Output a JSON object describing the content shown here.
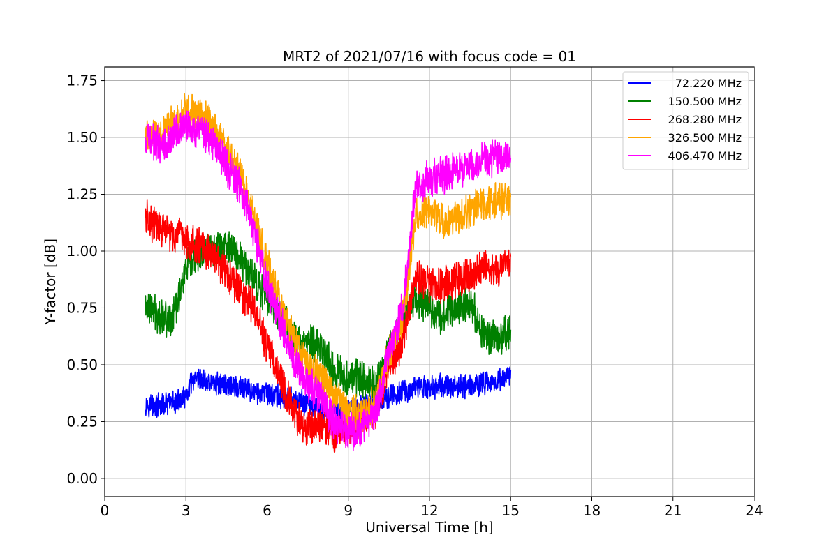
{
  "chart_data": {
    "type": "line",
    "title": "MRT2 of 2021/07/16 with focus code = 01",
    "xlabel": "Universal Time [h]",
    "ylabel": "Y-factor [dB]",
    "xlim": [
      0,
      24
    ],
    "ylim": [
      -0.08,
      1.81
    ],
    "xticks": [
      0,
      3,
      6,
      9,
      12,
      15,
      18,
      21,
      24
    ],
    "xtick_labels": [
      "0",
      "3",
      "6",
      "9",
      "12",
      "15",
      "18",
      "21",
      "24"
    ],
    "yticks": [
      0.0,
      0.25,
      0.5,
      0.75,
      1.0,
      1.25,
      1.5,
      1.75
    ],
    "ytick_labels": [
      "0.00",
      "0.25",
      "0.50",
      "0.75",
      "1.00",
      "1.25",
      "1.50",
      "1.75"
    ],
    "grid": true,
    "legend_position": "top-right",
    "series": [
      {
        "name": "72.220 MHz",
        "color": "#0000ff",
        "x": [
          1.5,
          2.0,
          2.5,
          3.0,
          3.2,
          3.5,
          4.0,
          4.5,
          5.0,
          5.5,
          6.0,
          6.5,
          7.0,
          7.5,
          8.0,
          8.5,
          9.0,
          9.5,
          10.0,
          10.5,
          11.0,
          11.5,
          12.0,
          12.5,
          13.0,
          13.5,
          14.0,
          14.5,
          15.0
        ],
        "y": [
          0.33,
          0.32,
          0.33,
          0.35,
          0.42,
          0.43,
          0.42,
          0.41,
          0.4,
          0.38,
          0.37,
          0.36,
          0.34,
          0.33,
          0.3,
          0.29,
          0.3,
          0.32,
          0.34,
          0.36,
          0.38,
          0.4,
          0.4,
          0.41,
          0.4,
          0.41,
          0.42,
          0.43,
          0.45
        ],
        "noise": 0.045
      },
      {
        "name": "150.500 MHz",
        "color": "#008000",
        "x": [
          1.5,
          2.0,
          2.5,
          3.0,
          3.5,
          4.0,
          4.5,
          5.0,
          5.5,
          6.0,
          6.5,
          7.0,
          7.5,
          8.0,
          8.5,
          9.0,
          9.5,
          10.0,
          10.5,
          11.0,
          11.5,
          12.0,
          12.5,
          13.0,
          13.5,
          14.0,
          14.5,
          15.0
        ],
        "y": [
          0.76,
          0.72,
          0.7,
          0.92,
          0.99,
          1.02,
          1.03,
          0.97,
          0.88,
          0.8,
          0.72,
          0.62,
          0.6,
          0.58,
          0.47,
          0.45,
          0.44,
          0.41,
          0.55,
          0.72,
          0.8,
          0.74,
          0.72,
          0.75,
          0.78,
          0.63,
          0.62,
          0.64
        ],
        "noise": 0.07
      },
      {
        "name": "268.280 MHz",
        "color": "#ff0000",
        "x": [
          1.5,
          2.0,
          2.5,
          3.0,
          3.5,
          4.0,
          4.5,
          5.0,
          5.5,
          6.0,
          6.5,
          7.0,
          7.5,
          8.0,
          8.5,
          9.0,
          9.5,
          10.0,
          10.5,
          11.0,
          11.5,
          12.0,
          12.5,
          13.0,
          13.5,
          14.0,
          14.5,
          15.0
        ],
        "y": [
          1.15,
          1.1,
          1.07,
          1.05,
          1.02,
          0.98,
          0.9,
          0.82,
          0.75,
          0.58,
          0.45,
          0.28,
          0.22,
          0.25,
          0.2,
          0.22,
          0.26,
          0.3,
          0.5,
          0.6,
          0.88,
          0.86,
          0.85,
          0.88,
          0.9,
          0.93,
          0.92,
          0.95
        ],
        "noise": 0.07
      },
      {
        "name": "326.500 MHz",
        "color": "#ffa500",
        "x": [
          1.5,
          2.0,
          2.5,
          3.0,
          3.5,
          4.0,
          4.5,
          5.0,
          5.5,
          6.0,
          6.5,
          7.0,
          7.5,
          8.0,
          8.5,
          9.0,
          9.5,
          10.0,
          10.5,
          11.0,
          11.5,
          12.0,
          12.5,
          13.0,
          13.5,
          14.0,
          14.5,
          15.0
        ],
        "y": [
          1.5,
          1.52,
          1.55,
          1.62,
          1.6,
          1.55,
          1.45,
          1.35,
          1.15,
          0.95,
          0.75,
          0.6,
          0.5,
          0.45,
          0.35,
          0.3,
          0.28,
          0.33,
          0.55,
          0.7,
          1.15,
          1.17,
          1.12,
          1.15,
          1.18,
          1.2,
          1.22,
          1.24
        ],
        "noise": 0.07
      },
      {
        "name": "406.470 MHz",
        "color": "#ff00ff",
        "x": [
          1.5,
          2.0,
          2.5,
          3.0,
          3.5,
          4.0,
          4.5,
          5.0,
          5.5,
          6.0,
          6.5,
          7.0,
          7.5,
          8.0,
          8.5,
          9.0,
          9.5,
          10.0,
          10.5,
          11.0,
          11.5,
          12.0,
          12.5,
          13.0,
          13.5,
          14.0,
          14.5,
          15.0
        ],
        "y": [
          1.5,
          1.47,
          1.5,
          1.57,
          1.52,
          1.48,
          1.38,
          1.28,
          1.1,
          0.85,
          0.68,
          0.52,
          0.42,
          0.35,
          0.24,
          0.2,
          0.22,
          0.28,
          0.55,
          0.75,
          1.28,
          1.32,
          1.33,
          1.36,
          1.38,
          1.4,
          1.41,
          1.4
        ],
        "noise": 0.07
      }
    ]
  }
}
